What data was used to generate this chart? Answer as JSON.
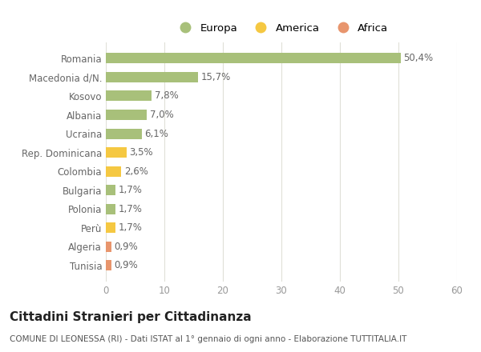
{
  "categories": [
    "Tunisia",
    "Algeria",
    "Perù",
    "Polonia",
    "Bulgaria",
    "Colombia",
    "Rep. Dominicana",
    "Ucraina",
    "Albania",
    "Kosovo",
    "Macedonia d/N.",
    "Romania"
  ],
  "values": [
    0.9,
    0.9,
    1.7,
    1.7,
    1.7,
    2.6,
    3.5,
    6.1,
    7.0,
    7.8,
    15.7,
    50.4
  ],
  "labels": [
    "0,9%",
    "0,9%",
    "1,7%",
    "1,7%",
    "1,7%",
    "2,6%",
    "3,5%",
    "6,1%",
    "7,0%",
    "7,8%",
    "15,7%",
    "50,4%"
  ],
  "colors": [
    "#e8956d",
    "#e8956d",
    "#f5c842",
    "#a8c07a",
    "#a8c07a",
    "#f5c842",
    "#f5c842",
    "#a8c07a",
    "#a8c07a",
    "#a8c07a",
    "#a8c07a",
    "#a8c07a"
  ],
  "continent": [
    "Africa",
    "Africa",
    "America",
    "Europa",
    "Europa",
    "America",
    "America",
    "Europa",
    "Europa",
    "Europa",
    "Europa",
    "Europa"
  ],
  "legend_labels": [
    "Europa",
    "America",
    "Africa"
  ],
  "legend_colors": [
    "#a8c07a",
    "#f5c842",
    "#e8956d"
  ],
  "title": "Cittadini Stranieri per Cittadinanza",
  "subtitle": "COMUNE DI LEONESSA (RI) - Dati ISTAT al 1° gennaio di ogni anno - Elaborazione TUTTITALIA.IT",
  "xlim": [
    0,
    60
  ],
  "xticks": [
    0,
    10,
    20,
    30,
    40,
    50,
    60
  ],
  "background_color": "#ffffff",
  "grid_color": "#e0e0d8",
  "bar_height": 0.55,
  "title_fontsize": 11,
  "subtitle_fontsize": 7.5,
  "label_fontsize": 8.5,
  "tick_fontsize": 8.5,
  "legend_fontsize": 9.5
}
